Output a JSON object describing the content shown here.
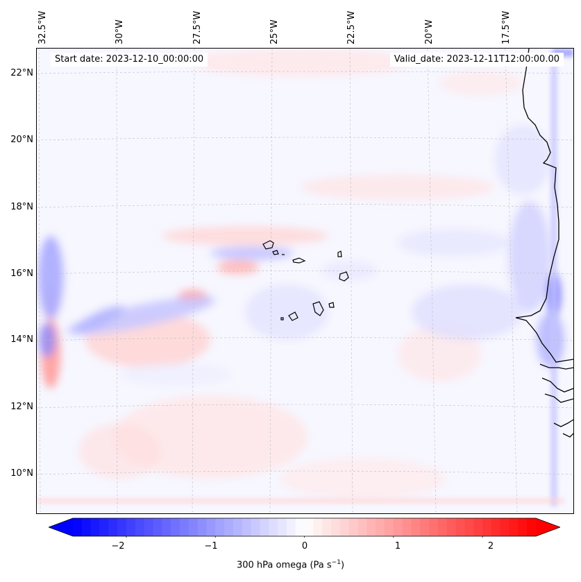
{
  "annotations": {
    "start_date": "Start date: 2023-12-10_00:00:00",
    "valid_date": "Valid_date: 2023-12-11T12:00:00.00"
  },
  "longitude_labels": [
    "32.5°W",
    "30°W",
    "27.5°W",
    "25°W",
    "22.5°W",
    "20°W",
    "17.5°W"
  ],
  "latitude_labels": [
    "22°N",
    "20°N",
    "18°N",
    "16°N",
    "14°N",
    "12°N",
    "10°N"
  ],
  "colorbar": {
    "ticks": [
      "−2",
      "−1",
      "0",
      "1",
      "2"
    ],
    "label_main": "300 hPa omega (Pa s",
    "label_sup": "−1",
    "label_close": ")",
    "range": [
      -2.6,
      2.6
    ],
    "colors": {
      "negative": "#0000ff",
      "zero": "#ffffff",
      "positive": "#ff0000"
    }
  },
  "map": {
    "coastline_color": "#000000",
    "gridline_color": "#bbbbbb"
  }
}
